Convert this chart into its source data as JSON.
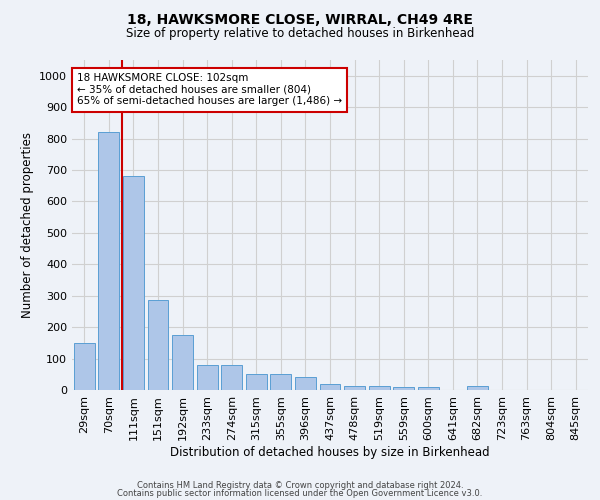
{
  "title": "18, HAWKSMORE CLOSE, WIRRAL, CH49 4RE",
  "subtitle": "Size of property relative to detached houses in Birkenhead",
  "xlabel": "Distribution of detached houses by size in Birkenhead",
  "ylabel": "Number of detached properties",
  "categories": [
    "29sqm",
    "70sqm",
    "111sqm",
    "151sqm",
    "192sqm",
    "233sqm",
    "274sqm",
    "315sqm",
    "355sqm",
    "396sqm",
    "437sqm",
    "478sqm",
    "519sqm",
    "559sqm",
    "600sqm",
    "641sqm",
    "682sqm",
    "723sqm",
    "763sqm",
    "804sqm",
    "845sqm"
  ],
  "values": [
    150,
    820,
    680,
    285,
    175,
    80,
    80,
    52,
    52,
    42,
    20,
    13,
    12,
    10,
    10,
    0,
    12,
    0,
    0,
    0,
    0
  ],
  "bar_color": "#aec6e8",
  "bar_edge_color": "#5a9fd4",
  "vline_x_index": 1.55,
  "annotation_text": "18 HAWKSMORE CLOSE: 102sqm\n← 35% of detached houses are smaller (804)\n65% of semi-detached houses are larger (1,486) →",
  "annotation_box_color": "#ffffff",
  "annotation_box_edge_color": "#cc0000",
  "vline_color": "#cc0000",
  "grid_color": "#d0d0d0",
  "ylim": [
    0,
    1050
  ],
  "yticks": [
    0,
    100,
    200,
    300,
    400,
    500,
    600,
    700,
    800,
    900,
    1000
  ],
  "footer1": "Contains HM Land Registry data © Crown copyright and database right 2024.",
  "footer2": "Contains public sector information licensed under the Open Government Licence v3.0.",
  "background_color": "#eef2f8",
  "plot_bg_color": "#eef2f8",
  "title_fontsize": 10,
  "subtitle_fontsize": 8.5,
  "ylabel_fontsize": 8.5,
  "xlabel_fontsize": 8.5,
  "tick_fontsize": 8,
  "annotation_fontsize": 7.5,
  "footer_fontsize": 6
}
